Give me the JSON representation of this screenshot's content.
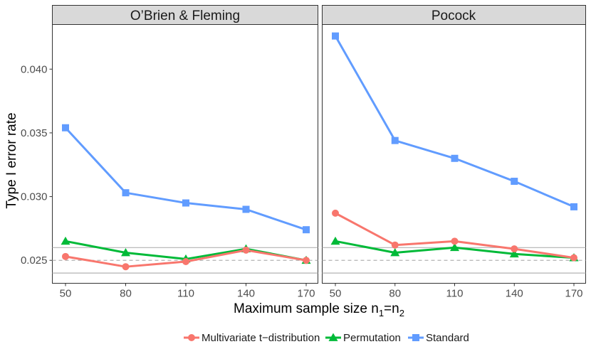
{
  "chart_data": {
    "type": "line",
    "ylabel": "Type I error rate",
    "xlabel": {
      "main": "Maximum sample size n",
      "sub1": "1",
      "eq": "=n",
      "sub2": "2"
    },
    "x": [
      50,
      80,
      110,
      140,
      170
    ],
    "x_tick_labels": [
      "50",
      "80",
      "110",
      "140",
      "170"
    ],
    "ylim": [
      0.0232,
      0.0435
    ],
    "y_ticks": [
      0.025,
      0.03,
      0.035,
      0.04
    ],
    "y_tick_labels": [
      "0.025",
      "0.030",
      "0.035",
      "0.040"
    ],
    "reference_lines": {
      "solid": [
        0.024,
        0.026
      ],
      "dashed": [
        0.025
      ]
    },
    "panels": [
      {
        "title": "O’Brien & Fleming",
        "series": [
          {
            "name": "Standard",
            "values": [
              0.0354,
              0.0303,
              0.0295,
              0.029,
              0.0274
            ]
          },
          {
            "name": "Permutation",
            "values": [
              0.0265,
              0.0256,
              0.0251,
              0.0259,
              0.025
            ]
          },
          {
            "name": "Multivariate t−distribution",
            "values": [
              0.0253,
              0.0245,
              0.0249,
              0.0258,
              0.025
            ]
          }
        ]
      },
      {
        "title": "Pocock",
        "series": [
          {
            "name": "Standard",
            "values": [
              0.0426,
              0.0344,
              0.033,
              0.0312,
              0.0292
            ]
          },
          {
            "name": "Permutation",
            "values": [
              0.0265,
              0.0256,
              0.026,
              0.0255,
              0.0252
            ]
          },
          {
            "name": "Multivariate t−distribution",
            "values": [
              0.0287,
              0.0262,
              0.0265,
              0.0259,
              0.0252
            ]
          }
        ]
      }
    ],
    "legend": [
      {
        "name": "Multivariate t−distribution",
        "shape": "circle",
        "color": "#F8766D"
      },
      {
        "name": "Permutation",
        "shape": "triangle",
        "color": "#00BA38"
      },
      {
        "name": "Standard",
        "shape": "square",
        "color": "#619CFF"
      }
    ],
    "legend_position": "bottom"
  }
}
